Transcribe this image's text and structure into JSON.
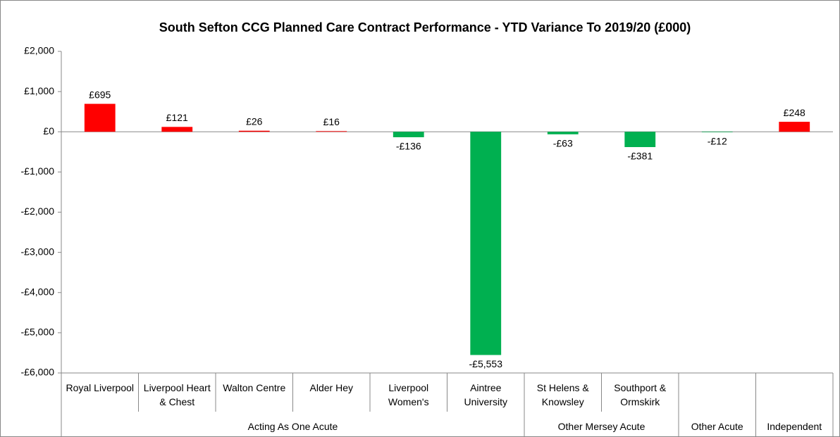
{
  "chart_data": {
    "type": "bar",
    "title": "South Sefton CCG Planned Care Contract Performance - YTD Variance To 2019/20 (£000)",
    "groups": [
      {
        "name": "Acting As One Acute",
        "categories": [
          "Royal Liverpool",
          "Liverpool Heart & Chest",
          "Walton Centre",
          "Alder Hey",
          "Liverpool Women's",
          "Aintree University"
        ],
        "values": [
          695,
          121,
          26,
          16,
          -136,
          -5553
        ],
        "value_labels": [
          "£695",
          "£121",
          "£26",
          "£16",
          "-£136",
          "-£5,553"
        ]
      },
      {
        "name": "Other Mersey Acute",
        "categories": [
          "St Helens & Knowsley",
          "Southport & Ormskirk"
        ],
        "values": [
          -63,
          -381
        ],
        "value_labels": [
          "-£63",
          "-£381"
        ]
      },
      {
        "name": "Other Acute",
        "categories": [
          null
        ],
        "values": [
          -12
        ],
        "value_labels": [
          "-£12"
        ]
      },
      {
        "name": "Independent",
        "categories": [
          null
        ],
        "values": [
          248
        ],
        "value_labels": [
          "£248"
        ]
      }
    ],
    "positive_color": "#ff0000",
    "negative_color": "#00b050",
    "ylim": [
      -6000,
      2000
    ],
    "yticks": [
      {
        "value": 2000,
        "label": "£2,000"
      },
      {
        "value": 1000,
        "label": "£1,000"
      },
      {
        "value": 0,
        "label": "£0"
      },
      {
        "value": -1000,
        "label": "-£1,000"
      },
      {
        "value": -2000,
        "label": "-£2,000"
      },
      {
        "value": -3000,
        "label": "-£3,000"
      },
      {
        "value": -4000,
        "label": "-£4,000"
      },
      {
        "value": -5000,
        "label": "-£5,000"
      },
      {
        "value": -6000,
        "label": "-£6,000"
      }
    ]
  }
}
